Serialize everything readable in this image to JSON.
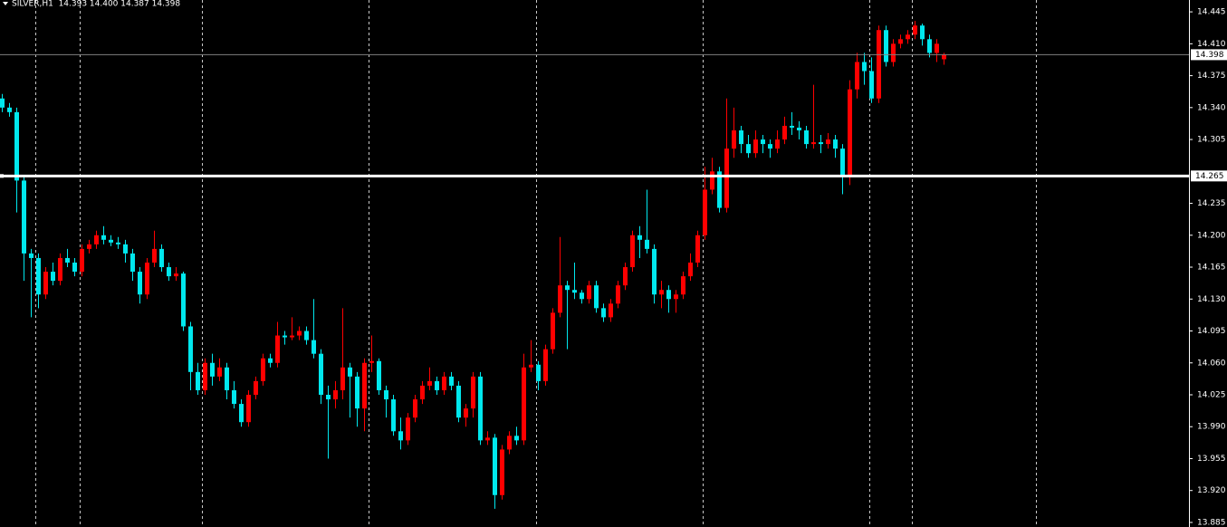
{
  "chart_data": {
    "type": "candlestick",
    "title": "SILVER,H1  14.393 14.400 14.387 14.398",
    "up_color": "#ff0000",
    "down_color": "#00e8ee",
    "ylim": [
      13.88,
      14.458
    ],
    "yticks": [
      14.445,
      {
        "value": 14.41,
        "label": "14.410"
      },
      14.375,
      {
        "value": 14.34,
        "label": "14.340"
      },
      14.305,
      14.235,
      {
        "value": 14.2,
        "label": "14.200"
      },
      14.165,
      {
        "value": 14.13,
        "label": "14.130"
      },
      14.095,
      {
        "value": 14.06,
        "label": "14.060"
      },
      14.025,
      {
        "value": 13.99,
        "label": "13.990"
      },
      13.955,
      {
        "value": 13.92,
        "label": "13.920"
      },
      13.885
    ],
    "price_line": {
      "value": 14.398,
      "label": "14.398",
      "color": "#808080"
    },
    "hline": {
      "value": 14.265,
      "label": "14.265",
      "color": "#ffffff"
    },
    "ohlc": [
      [
        14.35,
        14.355,
        14.335,
        14.34
      ],
      [
        14.34,
        14.345,
        14.33,
        14.335
      ],
      [
        14.335,
        14.34,
        14.225,
        14.26
      ],
      [
        14.26,
        14.265,
        14.15,
        14.18
      ],
      [
        14.18,
        14.185,
        14.11,
        14.175
      ],
      [
        14.175,
        14.18,
        14.12,
        14.135
      ],
      [
        14.135,
        14.165,
        14.13,
        14.16
      ],
      [
        14.16,
        14.17,
        14.145,
        14.15
      ],
      [
        14.15,
        14.18,
        14.145,
        14.175
      ],
      [
        14.175,
        14.185,
        14.165,
        14.17
      ],
      [
        14.17,
        14.175,
        14.155,
        14.16
      ],
      [
        14.16,
        14.19,
        14.155,
        14.185
      ],
      [
        14.185,
        14.195,
        14.18,
        14.19
      ],
      [
        14.19,
        14.205,
        14.185,
        14.2
      ],
      [
        14.2,
        14.21,
        14.19,
        14.195
      ],
      [
        14.195,
        14.2,
        14.188,
        14.192
      ],
      [
        14.192,
        14.198,
        14.185,
        14.19
      ],
      [
        14.19,
        14.195,
        14.17,
        14.18
      ],
      [
        14.18,
        14.185,
        14.15,
        14.16
      ],
      [
        14.16,
        14.165,
        14.125,
        14.135
      ],
      [
        14.135,
        14.175,
        14.13,
        14.17
      ],
      [
        14.17,
        14.205,
        14.165,
        14.185
      ],
      [
        14.185,
        14.19,
        14.16,
        14.165
      ],
      [
        14.165,
        14.17,
        14.15,
        14.155
      ],
      [
        14.155,
        14.165,
        14.15,
        14.158
      ],
      [
        14.158,
        14.16,
        14.095,
        14.1
      ],
      [
        14.1,
        14.105,
        14.03,
        14.05
      ],
      [
        14.05,
        14.06,
        14.025,
        14.03
      ],
      [
        14.03,
        14.065,
        14.025,
        14.06
      ],
      [
        14.06,
        14.07,
        14.035,
        14.045
      ],
      [
        14.045,
        14.065,
        14.04,
        14.055
      ],
      [
        14.055,
        14.06,
        14.02,
        14.03
      ],
      [
        14.03,
        14.04,
        14.01,
        14.015
      ],
      [
        14.015,
        14.02,
        13.99,
        13.995
      ],
      [
        13.995,
        14.03,
        13.99,
        14.025
      ],
      [
        14.025,
        14.045,
        14.02,
        14.04
      ],
      [
        14.04,
        14.07,
        14.035,
        14.065
      ],
      [
        14.065,
        14.07,
        14.055,
        14.06
      ],
      [
        14.06,
        14.105,
        14.055,
        14.09
      ],
      [
        14.09,
        14.095,
        14.08,
        14.088
      ],
      [
        14.088,
        14.11,
        14.085,
        14.09
      ],
      [
        14.09,
        14.1,
        14.085,
        14.095
      ],
      [
        14.095,
        14.1,
        14.08,
        14.085
      ],
      [
        14.085,
        14.13,
        14.065,
        14.07
      ],
      [
        14.07,
        14.075,
        14.015,
        14.025
      ],
      [
        14.025,
        14.035,
        13.955,
        14.02
      ],
      [
        14.02,
        14.04,
        14.01,
        14.03
      ],
      [
        14.03,
        14.12,
        14.02,
        14.055
      ],
      [
        14.055,
        14.06,
        14.0,
        14.045
      ],
      [
        14.045,
        14.05,
        13.99,
        14.01
      ],
      [
        14.01,
        14.065,
        13.985,
        14.06
      ],
      [
        14.06,
        14.09,
        14.05,
        14.062
      ],
      [
        14.062,
        14.065,
        14.025,
        14.03
      ],
      [
        14.03,
        14.035,
        14.0,
        14.02
      ],
      [
        14.02,
        14.025,
        13.98,
        13.985
      ],
      [
        13.985,
        14.0,
        13.965,
        13.975
      ],
      [
        13.975,
        14.005,
        13.97,
        14.0
      ],
      [
        14.0,
        14.025,
        13.995,
        14.02
      ],
      [
        14.02,
        14.04,
        14.015,
        14.035
      ],
      [
        14.035,
        14.055,
        14.03,
        14.04
      ],
      [
        14.04,
        14.045,
        14.025,
        14.03
      ],
      [
        14.03,
        14.05,
        14.025,
        14.045
      ],
      [
        14.045,
        14.05,
        14.03,
        14.035
      ],
      [
        14.035,
        14.04,
        13.995,
        14.0
      ],
      [
        14.0,
        14.015,
        13.99,
        14.01
      ],
      [
        14.01,
        14.05,
        14.0,
        14.045
      ],
      [
        14.045,
        14.05,
        13.97,
        13.975
      ],
      [
        13.975,
        13.985,
        13.97,
        13.978
      ],
      [
        13.978,
        13.982,
        13.9,
        13.915
      ],
      [
        13.915,
        13.97,
        13.91,
        13.965
      ],
      [
        13.965,
        13.985,
        13.96,
        13.98
      ],
      [
        13.98,
        13.99,
        13.97,
        13.975
      ],
      [
        13.975,
        14.07,
        13.97,
        14.055
      ],
      [
        14.055,
        14.085,
        14.05,
        14.058
      ],
      [
        14.058,
        14.062,
        14.03,
        14.04
      ],
      [
        14.04,
        14.08,
        14.035,
        14.075
      ],
      [
        14.075,
        14.12,
        14.07,
        14.115
      ],
      [
        14.115,
        14.198,
        14.11,
        14.145
      ],
      [
        14.145,
        14.15,
        14.075,
        14.14
      ],
      [
        14.14,
        14.17,
        14.13,
        14.137
      ],
      [
        14.137,
        14.14,
        14.125,
        14.13
      ],
      [
        14.13,
        14.15,
        14.125,
        14.145
      ],
      [
        14.145,
        14.15,
        14.115,
        14.12
      ],
      [
        14.12,
        14.125,
        14.105,
        14.11
      ],
      [
        14.11,
        14.13,
        14.105,
        14.125
      ],
      [
        14.125,
        14.15,
        14.12,
        14.145
      ],
      [
        14.145,
        14.17,
        14.14,
        14.165
      ],
      [
        14.165,
        14.205,
        14.16,
        14.2
      ],
      [
        14.2,
        14.21,
        14.175,
        14.195
      ],
      [
        14.195,
        14.25,
        14.18,
        14.185
      ],
      [
        14.185,
        14.19,
        14.125,
        14.135
      ],
      [
        14.135,
        14.15,
        14.12,
        14.14
      ],
      [
        14.14,
        14.145,
        14.115,
        14.13
      ],
      [
        14.13,
        14.14,
        14.115,
        14.135
      ],
      [
        14.135,
        14.16,
        14.13,
        14.155
      ],
      [
        14.155,
        14.18,
        14.15,
        14.17
      ],
      [
        14.17,
        14.205,
        14.165,
        14.2
      ],
      [
        14.2,
        14.275,
        14.195,
        14.25
      ],
      [
        14.25,
        14.285,
        14.245,
        14.27
      ],
      [
        14.27,
        14.275,
        14.225,
        14.23
      ],
      [
        14.23,
        14.35,
        14.225,
        14.295
      ],
      [
        14.295,
        14.34,
        14.285,
        14.315
      ],
      [
        14.315,
        14.32,
        14.29,
        14.3
      ],
      [
        14.3,
        14.31,
        14.285,
        14.29
      ],
      [
        14.29,
        14.315,
        14.285,
        14.305
      ],
      [
        14.305,
        14.31,
        14.29,
        14.3
      ],
      [
        14.3,
        14.305,
        14.285,
        14.295
      ],
      [
        14.295,
        14.315,
        14.29,
        14.305
      ],
      [
        14.305,
        14.33,
        14.3,
        14.32
      ],
      [
        14.32,
        14.335,
        14.31,
        14.318
      ],
      [
        14.318,
        14.325,
        14.305,
        14.315
      ],
      [
        14.315,
        14.32,
        14.295,
        14.3
      ],
      [
        14.3,
        14.365,
        14.295,
        14.302
      ],
      [
        14.302,
        14.31,
        14.29,
        14.3
      ],
      [
        14.3,
        14.312,
        14.295,
        14.305
      ],
      [
        14.305,
        14.31,
        14.285,
        14.295
      ],
      [
        14.295,
        14.3,
        14.245,
        14.265
      ],
      [
        14.265,
        14.37,
        14.255,
        14.36
      ],
      [
        14.36,
        14.4,
        14.35,
        14.39
      ],
      [
        14.39,
        14.4,
        14.365,
        14.38
      ],
      [
        14.38,
        14.395,
        14.345,
        14.35
      ],
      [
        14.35,
        14.43,
        14.345,
        14.425
      ],
      [
        14.425,
        14.43,
        14.385,
        14.39
      ],
      [
        14.39,
        14.415,
        14.385,
        14.41
      ],
      [
        14.41,
        14.42,
        14.405,
        14.415
      ],
      [
        14.415,
        14.425,
        14.41,
        14.42
      ],
      [
        14.42,
        14.435,
        14.415,
        14.43
      ],
      [
        14.43,
        14.432,
        14.408,
        14.415
      ],
      [
        14.415,
        14.42,
        14.395,
        14.4
      ],
      [
        14.4,
        14.415,
        14.39,
        14.41
      ],
      [
        14.393,
        14.4,
        14.387,
        14.398
      ]
    ]
  }
}
